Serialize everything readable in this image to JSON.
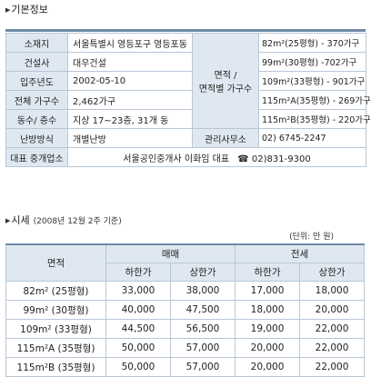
{
  "basic_section": {
    "title": "기본정보"
  },
  "info": {
    "r1": {
      "label": "소재지",
      "value": "서울특별시 영등포구 영등포동",
      "area": "82m²(25평형) - 370가구"
    },
    "r2": {
      "label": "건설사",
      "value": "대우건설",
      "area": "99m²(30평형) -702가구"
    },
    "r3": {
      "label": "입주년도",
      "value": "2002-05-10",
      "area": "109m²(33평형) - 901가구"
    },
    "r4": {
      "label": "전체 가구수",
      "value": "2,462가구",
      "area": "115m²A(35평형) - 269가구"
    },
    "r5": {
      "label": "동수/ 층수",
      "value": "지상 17~23층, 31개 동",
      "area": "115m²B(35평형) - 220가구"
    },
    "r6": {
      "label": "난방방식",
      "value": "개별난방",
      "mgmt_label": "관리사무소",
      "mgmt_phone": "02) 6745-2247"
    },
    "r7": {
      "label": "대표 중개업소",
      "value": "서울공인중개사 이화임 대표",
      "phone_icon": "☎",
      "phone": "02)831-9300"
    },
    "area_label_1": "면적 /",
    "area_label_2": "면적별 가구수"
  },
  "price_section": {
    "title": "시세",
    "subtitle": "(2008년 12월 2주 기준)",
    "unit": "(단위: 만 원)"
  },
  "price_table": {
    "col_area": "면적",
    "group_sale": "매매",
    "group_jeonse": "전세",
    "low": "하한가",
    "high": "상한가",
    "rows": [
      {
        "area": "82m² (25평형)",
        "sale_low": "33,000",
        "sale_high": "38,000",
        "jeonse_low": "17,000",
        "jeonse_high": "18,000"
      },
      {
        "area": "99m² (30평형)",
        "sale_low": "40,000",
        "sale_high": "47,500",
        "jeonse_low": "18,000",
        "jeonse_high": "20,000"
      },
      {
        "area": "109m² (33평형)",
        "sale_low": "44,500",
        "sale_high": "56,500",
        "jeonse_low": "19,000",
        "jeonse_high": "22,000"
      },
      {
        "area": "115m²A (35평형)",
        "sale_low": "50,000",
        "sale_high": "57,000",
        "jeonse_low": "20,000",
        "jeonse_high": "22,000"
      },
      {
        "area": "115m²B (35평형)",
        "sale_low": "50,000",
        "sale_high": "57,000",
        "jeonse_low": "20,000",
        "jeonse_high": "22,000"
      }
    ]
  }
}
